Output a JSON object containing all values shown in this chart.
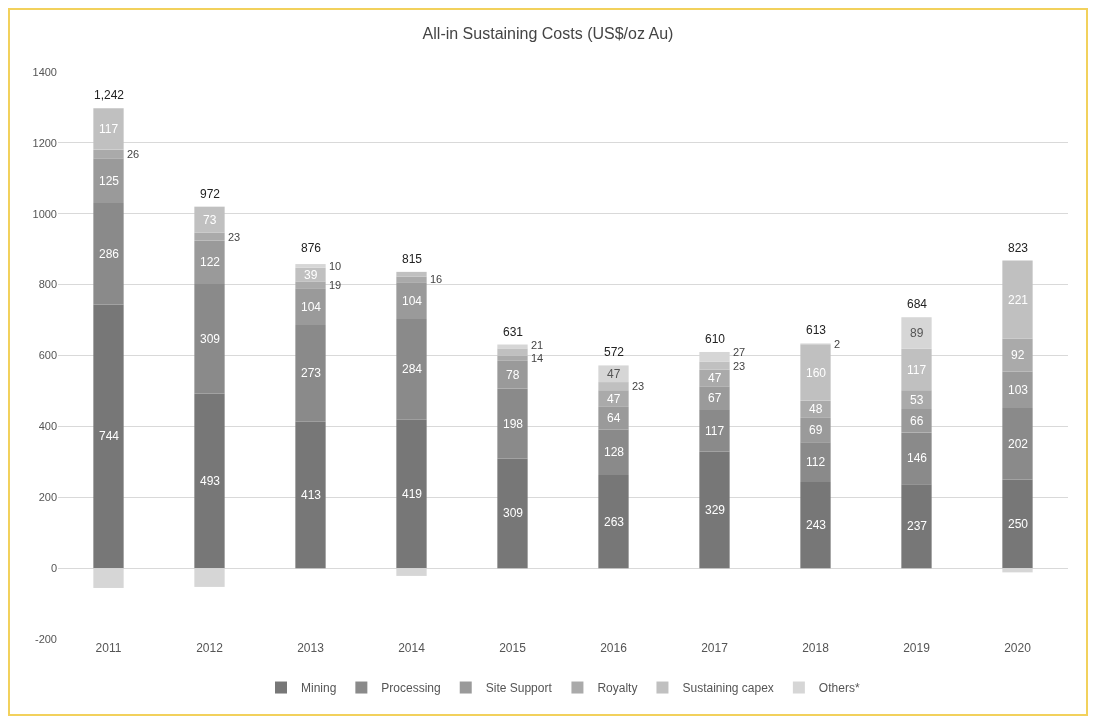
{
  "chart_data": {
    "type": "bar",
    "title": "All-in Sustaining Costs (US$/oz Au)",
    "stacked": true,
    "categories": [
      "2011",
      "2012",
      "2013",
      "2014",
      "2015",
      "2016",
      "2017",
      "2018",
      "2019",
      "2020"
    ],
    "series": [
      {
        "name": "Mining",
        "color": "#777777",
        "values": [
          744,
          493,
          413,
          419,
          309,
          263,
          329,
          243,
          237,
          250
        ],
        "value_labels": [
          "744",
          "493",
          "413",
          "419",
          "309",
          "263",
          "329",
          "243",
          "237",
          "250"
        ]
      },
      {
        "name": "Processing",
        "color": "#8a8a8a",
        "values": [
          286,
          309,
          273,
          284,
          198,
          128,
          117,
          112,
          146,
          202
        ],
        "value_labels": [
          "286",
          "309",
          "273",
          "284",
          "198",
          "128",
          "117",
          "112",
          "146",
          "202"
        ]
      },
      {
        "name": "Site Support",
        "color": "#9a9a9a",
        "values": [
          125,
          122,
          104,
          104,
          78,
          64,
          67,
          69,
          66,
          103
        ],
        "value_labels": [
          "125",
          "122",
          "104",
          "104",
          "78",
          "64",
          "67",
          "69",
          "66",
          "103"
        ]
      },
      {
        "name": "Royalty",
        "color": "#aaaaaa",
        "values": [
          26,
          23,
          19,
          16,
          14,
          47,
          47,
          48,
          53,
          92
        ],
        "value_labels": [
          "26",
          "23",
          "19",
          "16",
          "14",
          "47",
          "47",
          "48",
          "53",
          "92"
        ]
      },
      {
        "name": "Sustaining capex",
        "color": "#c0c0c0",
        "values": [
          117,
          73,
          39,
          13,
          21,
          23,
          23,
          160,
          117,
          221
        ],
        "value_labels": [
          "117",
          "73",
          "39",
          null,
          "21",
          "23",
          "23",
          "160",
          "117",
          "221"
        ]
      },
      {
        "name": "Others*",
        "color": "#d6d6d6",
        "values": [
          -56,
          -53,
          10,
          -22,
          11,
          47,
          27,
          2,
          89,
          -12
        ],
        "value_labels": [
          null,
          null,
          "10",
          null,
          null,
          "47",
          "27",
          "2",
          "89",
          null
        ]
      }
    ],
    "annotations": [
      {
        "text": "1,242",
        "x": "2011",
        "y": 1298
      },
      {
        "text": "972",
        "x": "2012",
        "y": 1020
      },
      {
        "text": "876",
        "x": "2013",
        "y": 868
      },
      {
        "text": "815",
        "x": "2014",
        "y": 837
      },
      {
        "text": "631",
        "x": "2015",
        "y": 631
      },
      {
        "text": "572",
        "x": "2016",
        "y": 572
      },
      {
        "text": "610",
        "x": "2017",
        "y": 610
      },
      {
        "text": "613",
        "x": "2018",
        "y": 634
      },
      {
        "text": "684",
        "x": "2019",
        "y": 708
      },
      {
        "text": "823",
        "x": "2020",
        "y": 868
      }
    ],
    "ylim": [
      -200,
      1400
    ],
    "yticks": [
      -200,
      0,
      200,
      400,
      600,
      800,
      1000,
      1200,
      1400
    ],
    "grid": "y",
    "legend": "bottom"
  }
}
